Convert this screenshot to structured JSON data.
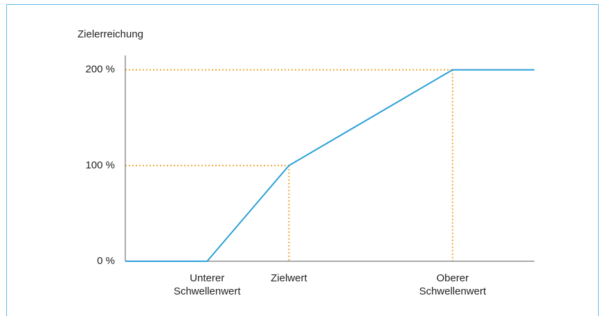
{
  "chart_data": {
    "type": "line",
    "y_label": "Zielerreichung",
    "x": [
      0,
      1,
      2,
      4,
      5
    ],
    "series": [
      {
        "name": null,
        "color": "#2a9fd8",
        "values": [
          0,
          0,
          100,
          200,
          200
        ]
      }
    ],
    "xlim": [
      0,
      5
    ],
    "xticks": [
      {
        "value": 1,
        "label": "Unterer Schwellenwert"
      },
      {
        "value": 2,
        "label": "Zielwert"
      },
      {
        "value": 4,
        "label": "Oberer Schwellenwert"
      }
    ],
    "ylim": [
      0,
      215
    ],
    "yticks": [
      {
        "value": 0,
        "label": "0 %"
      },
      {
        "value": 100,
        "label": "100 %"
      },
      {
        "value": 200,
        "label": "200 %"
      }
    ],
    "guide_color": "#f0a830"
  }
}
